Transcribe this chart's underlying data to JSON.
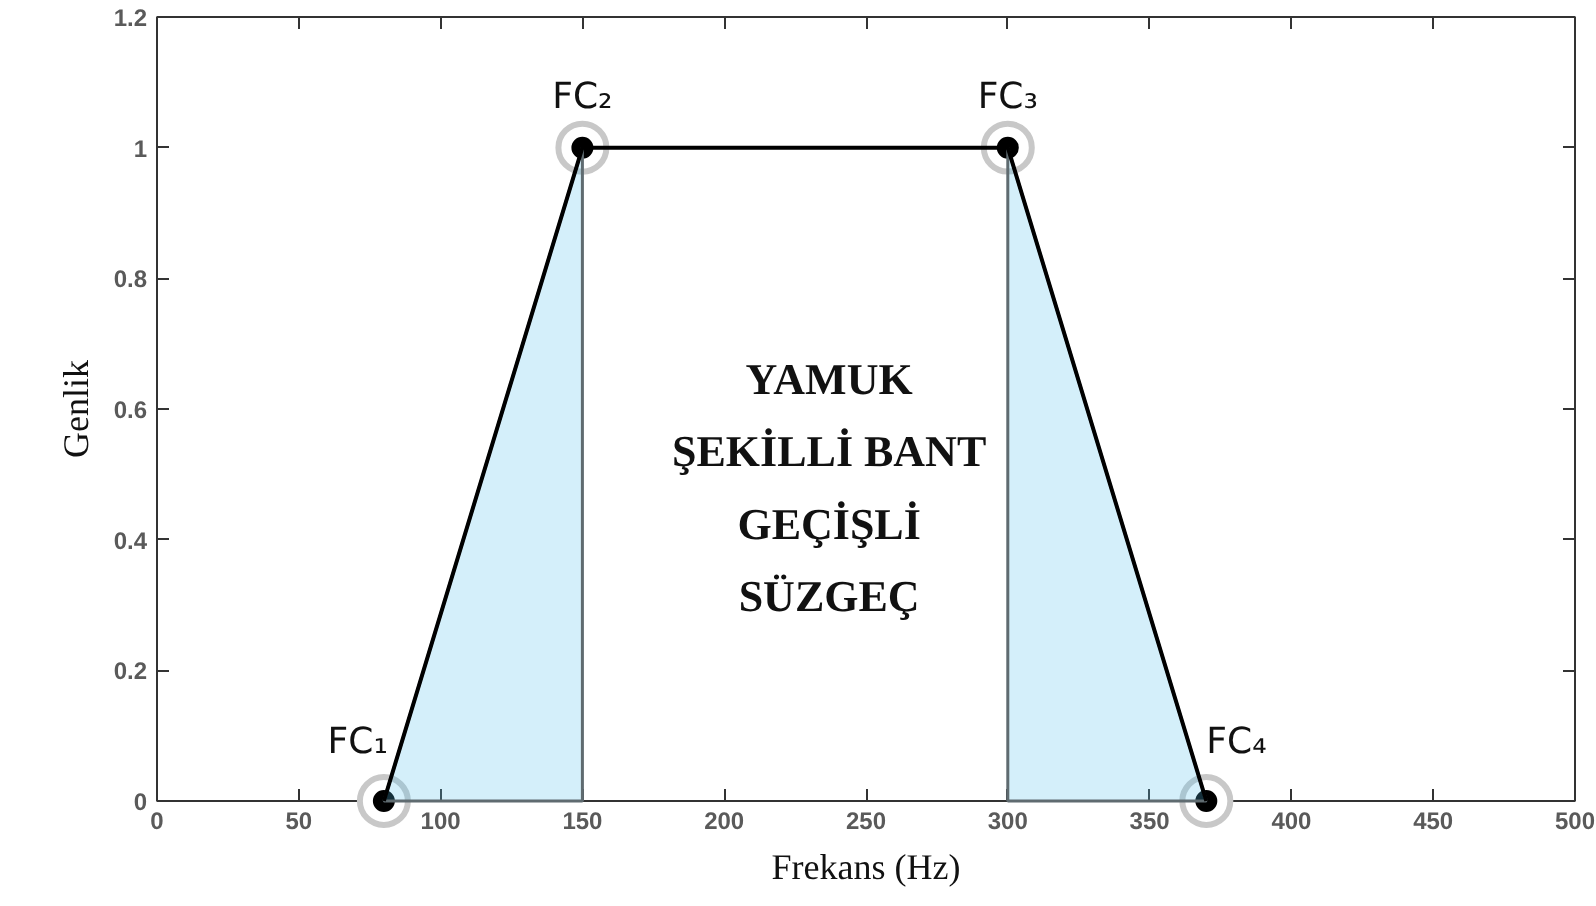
{
  "chart_data": {
    "type": "line",
    "xlabel": "Frekans (Hz)",
    "ylabel": "Genlik",
    "xlim": [
      0,
      500
    ],
    "ylim": [
      0,
      1.2
    ],
    "xticks": [
      0,
      50,
      100,
      150,
      200,
      250,
      300,
      350,
      400,
      450,
      500
    ],
    "yticks": [
      0,
      0.2,
      0.4,
      0.6,
      0.8,
      1,
      1.2
    ],
    "marker": "circle",
    "series": [
      {
        "type": "area",
        "color": "#d4effa",
        "x": [
          80,
          150
        ],
        "values": [
          0,
          1
        ]
      },
      {
        "type": "area",
        "color": "#d4effa",
        "x": [
          300,
          370
        ],
        "values": [
          1,
          0
        ]
      },
      {
        "color": "#000000",
        "x": [
          80,
          150,
          300,
          370
        ],
        "values": [
          0,
          1,
          1,
          0
        ]
      }
    ],
    "annotations": [
      "YAMUK\nŞEKİLLİ BANT\nGEÇİŞLİ\nSÜZGEÇ",
      {
        "text": "FC₁",
        "x": 80,
        "y": 0
      },
      {
        "text": "FC₂",
        "x": 150,
        "y": 1
      },
      {
        "text": "FC₃",
        "x": 300,
        "y": 1
      },
      {
        "text": "FC₄",
        "x": 370,
        "y": 0
      }
    ]
  }
}
